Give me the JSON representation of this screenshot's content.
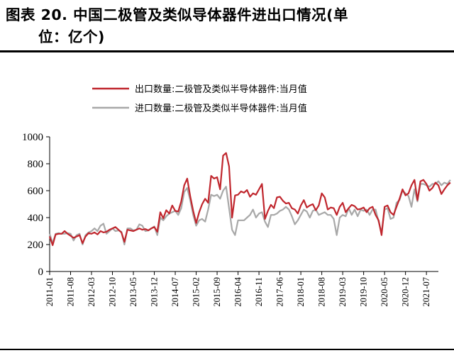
{
  "header": {
    "title_line1": "图表 20. 中国二极管及类似导体器件进出口情况(单",
    "title_line2": "位：亿个)"
  },
  "chart_data": {
    "type": "line",
    "title": "图表 20. 中国二极管及类似导体器件进出口情况(单位：亿个)",
    "ylim": [
      0,
      1000
    ],
    "yticks": [
      "0",
      "200",
      "400",
      "600",
      "800",
      "1000"
    ],
    "xlim": [
      "2011-01",
      "2021-11"
    ],
    "xticks": [
      "2011-01",
      "2011-08",
      "2012-03",
      "2012-10",
      "2013-05",
      "2013-12",
      "2014-07",
      "2015-02",
      "2015-09",
      "2016-04",
      "2016-11",
      "2017-06",
      "2018-01",
      "2018-08",
      "2019-03",
      "2019-10",
      "2020-05",
      "2020-12",
      "2021-07"
    ],
    "legend_position": "top-center",
    "grid": false,
    "series": [
      {
        "name": "出口数量:二极管及类似半导体器件:当月值",
        "color": "#c0262d",
        "start": "2011-01",
        "values": [
          260,
          195,
          275,
          280,
          280,
          300,
          280,
          265,
          250,
          260,
          270,
          210,
          260,
          285,
          280,
          290,
          275,
          300,
          290,
          295,
          310,
          320,
          330,
          310,
          290,
          220,
          310,
          305,
          300,
          310,
          320,
          310,
          315,
          305,
          320,
          330,
          295,
          440,
          395,
          455,
          430,
          490,
          450,
          445,
          520,
          640,
          690,
          560,
          450,
          360,
          440,
          500,
          540,
          510,
          710,
          690,
          700,
          610,
          860,
          880,
          780,
          400,
          565,
          570,
          595,
          585,
          605,
          555,
          580,
          570,
          610,
          650,
          390,
          450,
          495,
          470,
          550,
          555,
          525,
          505,
          510,
          470,
          460,
          430,
          490,
          530,
          475,
          490,
          500,
          455,
          490,
          580,
          550,
          460,
          475,
          470,
          420,
          480,
          510,
          440,
          470,
          495,
          485,
          460,
          465,
          475,
          440,
          470,
          480,
          420,
          380,
          270,
          480,
          490,
          440,
          420,
          480,
          540,
          610,
          565,
          580,
          640,
          680,
          530,
          670,
          680,
          650,
          600,
          620,
          660,
          640,
          575,
          610,
          640,
          660
        ]
      },
      {
        "name": "进口数量:二极管及类似半导体器件:当月值",
        "color": "#a8a8a8",
        "start": "2011-01",
        "values": [
          280,
          210,
          280,
          285,
          280,
          280,
          285,
          280,
          230,
          270,
          280,
          200,
          270,
          290,
          300,
          320,
          300,
          340,
          355,
          280,
          300,
          320,
          300,
          305,
          295,
          200,
          320,
          320,
          305,
          310,
          350,
          340,
          300,
          305,
          320,
          335,
          270,
          400,
          380,
          410,
          430,
          440,
          450,
          420,
          470,
          590,
          620,
          530,
          420,
          340,
          380,
          390,
          370,
          460,
          570,
          560,
          570,
          540,
          600,
          630,
          470,
          310,
          270,
          380,
          380,
          380,
          400,
          420,
          460,
          400,
          430,
          440,
          370,
          330,
          420,
          420,
          430,
          450,
          460,
          480,
          460,
          410,
          350,
          380,
          420,
          460,
          445,
          400,
          450,
          460,
          420,
          430,
          440,
          420,
          420,
          390,
          270,
          400,
          420,
          410,
          470,
          420,
          460,
          410,
          460,
          450,
          460,
          420,
          460,
          460,
          370,
          290,
          460,
          470,
          390,
          400,
          510,
          530,
          600,
          580,
          560,
          480,
          610,
          520,
          650,
          650,
          640,
          630,
          650,
          650,
          670,
          640,
          660,
          650,
          680
        ]
      }
    ]
  }
}
